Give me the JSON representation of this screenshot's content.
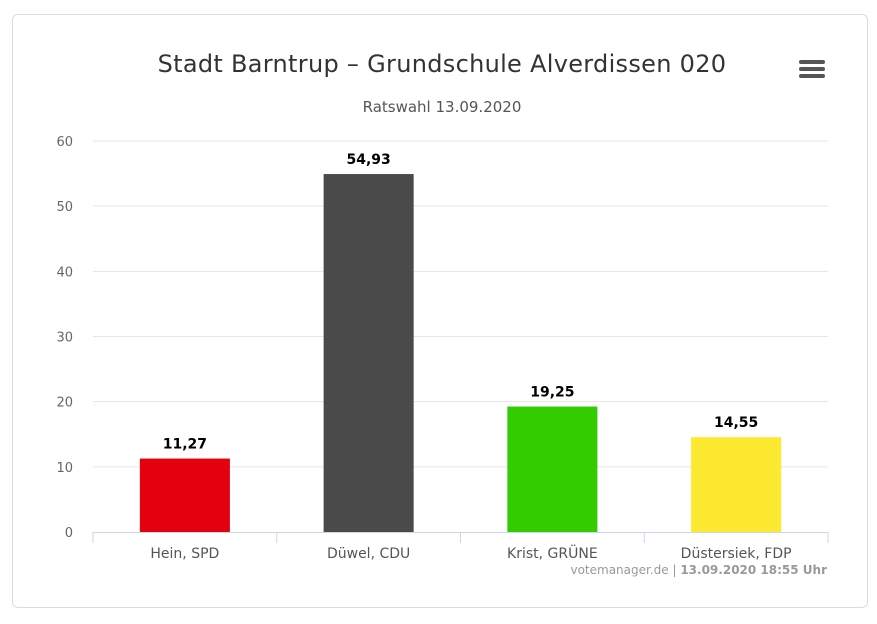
{
  "header": {
    "title": "Stadt Barntrup – Grundschule Alverdissen 020",
    "subtitle": "Ratswahl 13.09.2020"
  },
  "menu": {
    "icon": "hamburger-menu-icon"
  },
  "credits": {
    "source": "votemanager.de",
    "separator": " | ",
    "timestamp": "13.09.2020 18:55 Uhr"
  },
  "chart_data": {
    "type": "bar",
    "title": "Stadt Barntrup – Grundschule Alverdissen 020",
    "subtitle": "Ratswahl 13.09.2020",
    "categories": [
      "Hein, SPD",
      "Düwel, CDU",
      "Krist, GRÜNE",
      "Düstersiek, FDP"
    ],
    "values": [
      11.27,
      54.93,
      19.25,
      14.55
    ],
    "data_labels": [
      "11,27",
      "54,93",
      "19,25",
      "14,55"
    ],
    "colors": [
      "#e3000f",
      "#4a4a4a",
      "#33cc00",
      "#fdea30"
    ],
    "ylim": [
      0,
      60
    ],
    "yticks": [
      0,
      10,
      20,
      30,
      40,
      50,
      60
    ],
    "xlabel": "",
    "ylabel": "",
    "grid": true,
    "legend": "none"
  }
}
